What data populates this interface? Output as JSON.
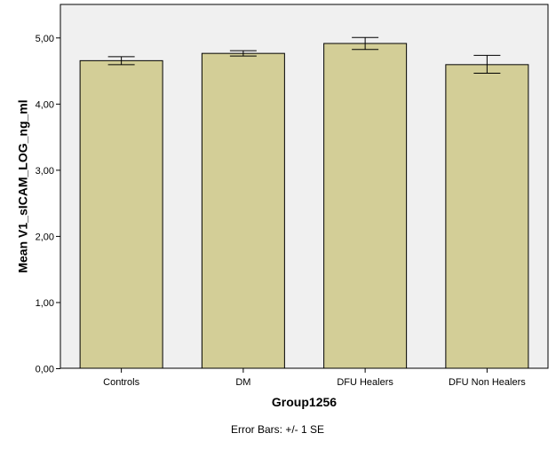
{
  "chart_data": {
    "type": "bar",
    "categories": [
      "Controls",
      "DM",
      "DFU Healers",
      "DFU Non Healers"
    ],
    "values": [
      4.65,
      4.76,
      4.91,
      4.59
    ],
    "error_bars": {
      "lower": [
        4.59,
        4.72,
        4.82,
        4.46
      ],
      "upper": [
        4.71,
        4.8,
        5.0,
        4.73
      ]
    },
    "xlabel": "Group1256",
    "ylabel": "Mean V1_sICAM_LOG_ng_ml",
    "ylim": [
      0,
      5.5
    ],
    "yticks": [
      0,
      1,
      2,
      3,
      4,
      5
    ],
    "ytick_labels": [
      "0,00",
      "1,00",
      "2,00",
      "3,00",
      "4,00",
      "5,00"
    ],
    "footnote": "Error Bars: +/- 1 SE",
    "grid": false,
    "legend": "none",
    "colors": {
      "bar_fill": "#d3ce97",
      "bar_stroke": "#000000",
      "plot_background": "#f0f0f0",
      "axis": "#000000"
    }
  }
}
